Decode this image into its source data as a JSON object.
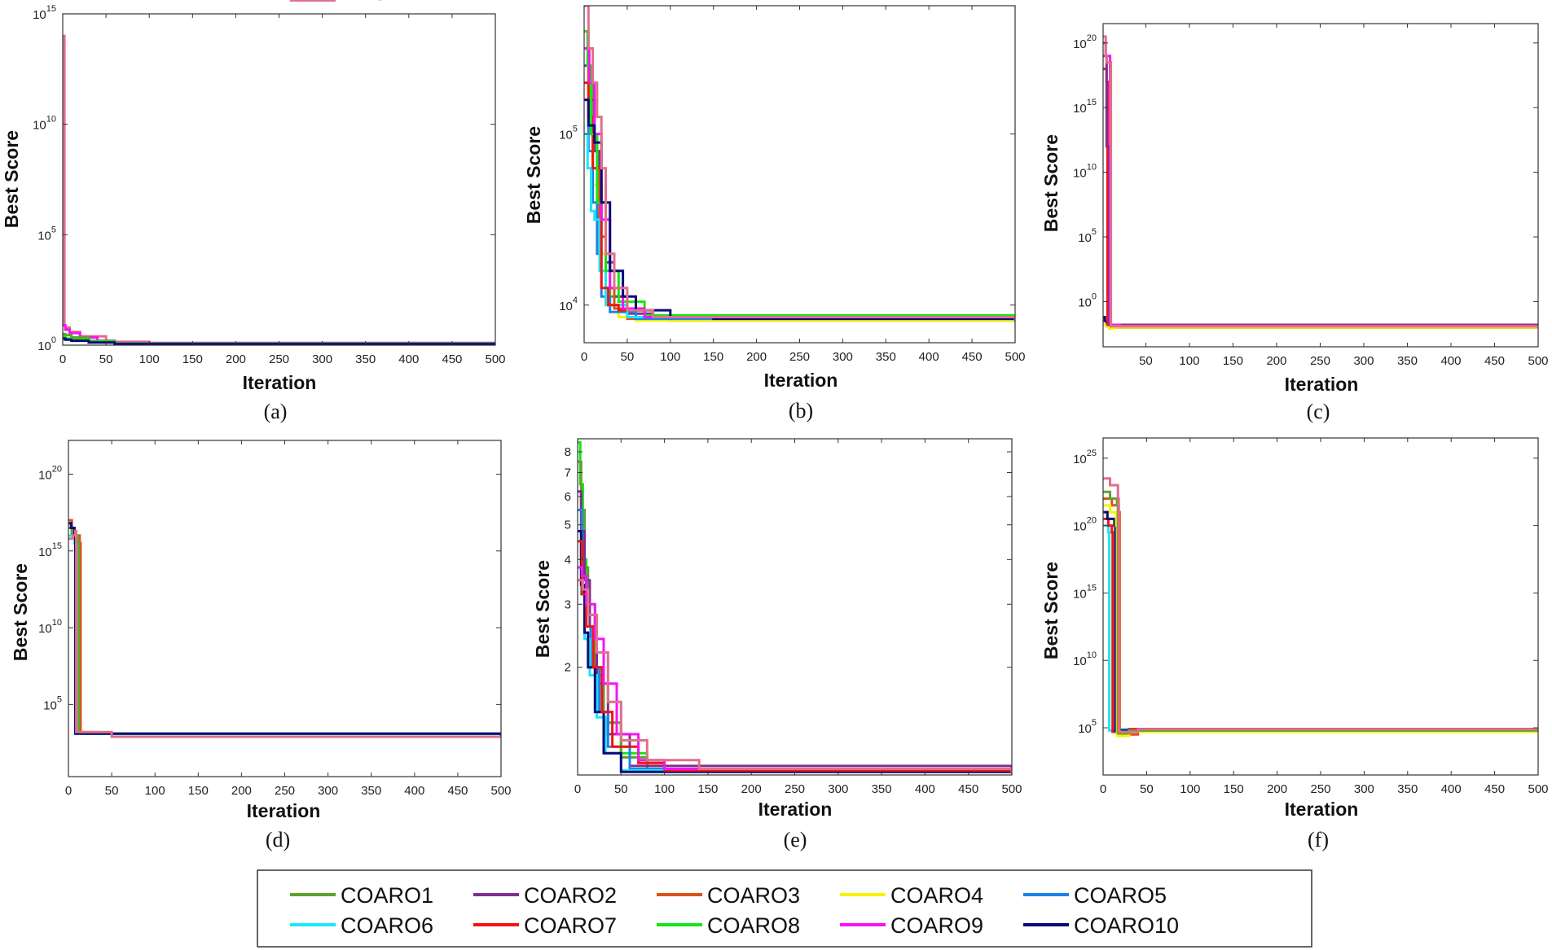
{
  "figure": {
    "legend": [
      {
        "name": "COARO1",
        "color": "#5fa22e"
      },
      {
        "name": "COARO2",
        "color": "#7e2f8e"
      },
      {
        "name": "COARO3",
        "color": "#d95319"
      },
      {
        "name": "COARO4",
        "color": "#f5f500"
      },
      {
        "name": "COARO5",
        "color": "#1c82e8"
      },
      {
        "name": "COARO6",
        "color": "#19e8f5"
      },
      {
        "name": "COARO7",
        "color": "#f01414"
      },
      {
        "name": "COARO8",
        "color": "#14e514"
      },
      {
        "name": "COARO9",
        "color": "#f514f5"
      },
      {
        "name": "COARO10",
        "color": "#0a0a78"
      },
      {
        "name": "ARO",
        "color": "#e0708a"
      }
    ]
  },
  "chart_data": [
    {
      "type": "line",
      "panel_label": "(a)",
      "xlabel": "Iteration",
      "ylabel": "Best Score",
      "yscale": "log",
      "xlim": [
        0,
        500
      ],
      "ylim_log10": [
        0,
        15
      ],
      "xticks": [
        0,
        50,
        100,
        150,
        200,
        250,
        300,
        350,
        400,
        450,
        500
      ],
      "yticks_exp": [
        0,
        5,
        10,
        15
      ],
      "series": [
        {
          "name": "ARO",
          "x": [
            0,
            1,
            2,
            3,
            8,
            20,
            50,
            100,
            500
          ],
          "log10_y": [
            14,
            14,
            0.9,
            0.8,
            0.6,
            0.4,
            0.15,
            0.05,
            0.02
          ]
        },
        {
          "name": "COARO9",
          "x": [
            0,
            3,
            8,
            20,
            40,
            60,
            500
          ],
          "log10_y": [
            0.9,
            0.7,
            0.55,
            0.35,
            0.2,
            0.1,
            0.02
          ]
        },
        {
          "name": "COARO1",
          "x": [
            0,
            3,
            10,
            30,
            60,
            500
          ],
          "log10_y": [
            0.5,
            0.45,
            0.35,
            0.2,
            0.08,
            0.02
          ]
        },
        {
          "name": "COARO8",
          "x": [
            0,
            3,
            10,
            30,
            60,
            500
          ],
          "log10_y": [
            0.4,
            0.3,
            0.25,
            0.15,
            0.06,
            0.02
          ]
        },
        {
          "name": "COARO10",
          "x": [
            0,
            3,
            10,
            30,
            60,
            500
          ],
          "log10_y": [
            0.3,
            0.25,
            0.2,
            0.12,
            0.05,
            0.02
          ]
        }
      ]
    },
    {
      "type": "line",
      "panel_label": "(b)",
      "xlabel": "Iteration",
      "ylabel": "Best Score",
      "yscale": "log",
      "xlim": [
        0,
        500
      ],
      "ylim_log10": [
        3.78,
        5.75
      ],
      "xticks": [
        0,
        50,
        100,
        150,
        200,
        250,
        300,
        350,
        400,
        450,
        500
      ],
      "yticks_exp": [
        4,
        5
      ],
      "series": [
        {
          "name": "COARO1",
          "x": [
            0,
            5,
            10,
            15,
            20,
            30,
            50,
            80,
            120,
            500
          ],
          "log10_y": [
            5.6,
            5.3,
            5.0,
            4.7,
            4.3,
            4.05,
            3.97,
            3.93,
            3.92,
            3.91
          ]
        },
        {
          "name": "COARO2",
          "x": [
            0,
            6,
            12,
            18,
            25,
            35,
            50,
            80,
            500
          ],
          "log10_y": [
            5.4,
            5.2,
            4.9,
            4.6,
            4.25,
            4.05,
            3.95,
            3.92,
            3.91
          ]
        },
        {
          "name": "COARO3",
          "x": [
            0,
            5,
            10,
            18,
            25,
            35,
            50,
            100,
            500
          ],
          "log10_y": [
            5.5,
            5.1,
            4.8,
            4.4,
            4.1,
            3.98,
            3.92,
            3.91,
            3.9
          ]
        },
        {
          "name": "COARO4",
          "x": [
            0,
            5,
            10,
            15,
            25,
            40,
            60,
            500
          ],
          "log10_y": [
            5.3,
            5.0,
            4.7,
            4.3,
            4.0,
            3.93,
            3.91,
            3.9
          ]
        },
        {
          "name": "COARO5",
          "x": [
            0,
            5,
            10,
            15,
            20,
            30,
            60,
            500
          ],
          "log10_y": [
            5.2,
            4.9,
            4.6,
            4.3,
            4.05,
            3.96,
            3.92,
            3.9
          ]
        },
        {
          "name": "COARO6",
          "x": [
            0,
            4,
            8,
            12,
            18,
            25,
            50,
            500
          ],
          "log10_y": [
            5.0,
            4.8,
            4.55,
            4.5,
            4.2,
            4.0,
            3.93,
            3.9
          ]
        },
        {
          "name": "COARO7",
          "x": [
            0,
            5,
            10,
            20,
            28,
            40,
            70,
            500
          ],
          "log10_y": [
            5.3,
            5.1,
            4.8,
            4.1,
            4.0,
            3.97,
            3.93,
            3.91
          ]
        },
        {
          "name": "COARO8",
          "x": [
            0,
            4,
            8,
            15,
            25,
            40,
            70,
            500
          ],
          "log10_y": [
            5.6,
            5.4,
            5.0,
            4.6,
            4.2,
            4.02,
            3.94,
            3.91
          ]
        },
        {
          "name": "COARO9",
          "x": [
            0,
            6,
            12,
            20,
            30,
            45,
            70,
            500
          ],
          "log10_y": [
            5.5,
            5.3,
            5.0,
            4.5,
            4.1,
            3.98,
            3.93,
            3.91
          ]
        },
        {
          "name": "COARO10",
          "x": [
            0,
            5,
            12,
            20,
            30,
            45,
            60,
            100,
            150,
            500
          ],
          "log10_y": [
            5.2,
            5.05,
            4.95,
            4.6,
            4.2,
            4.05,
            3.97,
            3.93,
            3.92,
            3.91
          ]
        },
        {
          "name": "ARO",
          "x": [
            0,
            5,
            10,
            15,
            20,
            25,
            35,
            50,
            80,
            500
          ],
          "log10_y": [
            5.75,
            5.5,
            5.3,
            5.1,
            4.8,
            4.3,
            4.1,
            3.97,
            3.93,
            3.91
          ]
        }
      ]
    },
    {
      "type": "line",
      "panel_label": "(c)",
      "xlabel": "Iteration",
      "ylabel": "Best Score",
      "yscale": "log",
      "xlim": [
        1,
        500
      ],
      "ylim_log10": [
        -3.5,
        21.5
      ],
      "xticks": [
        50,
        100,
        150,
        200,
        250,
        300,
        350,
        400,
        450,
        500
      ],
      "yticks_exp": [
        0,
        5,
        10,
        15,
        20
      ],
      "series": [
        {
          "name": "COARO10",
          "x": [
            1,
            3,
            5,
            10,
            500
          ],
          "log10_y": [
            -1.2,
            -1.5,
            -1.9,
            -2.0,
            -2.0
          ]
        },
        {
          "name": "COARO4",
          "x": [
            1,
            5,
            8,
            12,
            500
          ],
          "log10_y": [
            -1.8,
            -1.9,
            -2.1,
            -2.0,
            -2.0
          ]
        },
        {
          "name": "COARO7",
          "x": [
            1,
            4,
            5,
            6,
            10,
            500
          ],
          "log10_y": [
            18,
            18,
            17,
            -1.8,
            -1.9,
            -2.0
          ]
        },
        {
          "name": "COARO2",
          "x": [
            1,
            4,
            5,
            8,
            500
          ],
          "log10_y": [
            19,
            19,
            12,
            -1.8,
            -2.0
          ]
        },
        {
          "name": "COARO9",
          "x": [
            1,
            3,
            4,
            8,
            9,
            10,
            20,
            500
          ],
          "log10_y": [
            20,
            20,
            19,
            19,
            -1.6,
            -1.8,
            -1.9,
            -2.0
          ]
        },
        {
          "name": "ARO",
          "x": [
            1,
            4,
            5,
            10,
            500
          ],
          "log10_y": [
            20.5,
            19,
            18.5,
            -1.9,
            -2.0
          ]
        }
      ]
    },
    {
      "type": "line",
      "panel_label": "(d)",
      "xlabel": "Iteration",
      "ylabel": "Best Score",
      "yscale": "log",
      "xlim": [
        0,
        500
      ],
      "ylim_log10": [
        0.3,
        22.2
      ],
      "xticks": [
        0,
        50,
        100,
        150,
        200,
        250,
        300,
        350,
        400,
        450,
        500
      ],
      "yticks_exp": [
        5,
        10,
        15,
        20
      ],
      "series": [
        {
          "name": "COARO3",
          "x": [
            0,
            4,
            13,
            14,
            16,
            500
          ],
          "log10_y": [
            17,
            16,
            15.5,
            3.2,
            3.1,
            2.8
          ]
        },
        {
          "name": "COARO1",
          "x": [
            0,
            4,
            11,
            12,
            500
          ],
          "log10_y": [
            16.5,
            16,
            15.5,
            3.1,
            2.8
          ]
        },
        {
          "name": "COARO6",
          "x": [
            0,
            3,
            7,
            8,
            500
          ],
          "log10_y": [
            16,
            16,
            15.5,
            3.1,
            2.8
          ]
        },
        {
          "name": "COARO10",
          "x": [
            0,
            3,
            7,
            8,
            500
          ],
          "log10_y": [
            16.8,
            16.5,
            16,
            3.1,
            2.8
          ]
        },
        {
          "name": "ARO",
          "x": [
            0,
            5,
            8,
            9,
            50,
            500
          ],
          "log10_y": [
            15.8,
            16,
            16.3,
            3.2,
            2.9,
            2.8
          ]
        }
      ]
    },
    {
      "type": "line",
      "panel_label": "(e)",
      "xlabel": "Iteration",
      "ylabel": "Best Score",
      "yscale": "log",
      "xlim": [
        0,
        500
      ],
      "ylim": [
        1,
        8.7
      ],
      "xticks": [
        0,
        50,
        100,
        150,
        200,
        250,
        300,
        350,
        400,
        450,
        500
      ],
      "yticks": [
        2,
        3,
        4,
        5,
        6,
        7,
        8
      ],
      "series": [
        {
          "name": "COARO8",
          "x": [
            0,
            3,
            6,
            10,
            20,
            30,
            50,
            80,
            500
          ],
          "y": [
            8.5,
            6.5,
            4.0,
            3.0,
            2.0,
            1.4,
            1.15,
            1.03,
            1.0
          ]
        },
        {
          "name": "COARO1",
          "x": [
            0,
            4,
            8,
            12,
            20,
            30,
            50,
            80,
            500
          ],
          "y": [
            7.5,
            5.5,
            3.8,
            2.8,
            1.9,
            1.4,
            1.12,
            1.03,
            1.0
          ]
        },
        {
          "name": "COARO2",
          "x": [
            0,
            4,
            8,
            14,
            22,
            35,
            60,
            500
          ],
          "y": [
            6.2,
            4.8,
            3.5,
            2.6,
            1.8,
            1.3,
            1.06,
            1.0
          ]
        },
        {
          "name": "COARO5",
          "x": [
            0,
            5,
            10,
            15,
            25,
            35,
            60,
            500
          ],
          "y": [
            5.5,
            3.5,
            2.6,
            2.0,
            1.5,
            1.2,
            1.04,
            1.0
          ]
        },
        {
          "name": "COARO6",
          "x": [
            0,
            4,
            8,
            14,
            22,
            32,
            50,
            500
          ],
          "y": [
            4.8,
            3.2,
            2.4,
            1.9,
            1.45,
            1.15,
            1.03,
            1.0
          ]
        },
        {
          "name": "COARO10",
          "x": [
            0,
            4,
            8,
            12,
            20,
            30,
            50,
            500
          ],
          "y": [
            4.8,
            3.4,
            2.5,
            2.0,
            1.5,
            1.15,
            1.02,
            1.0
          ]
        },
        {
          "name": "COARO7",
          "x": [
            0,
            5,
            10,
            18,
            28,
            40,
            70,
            100,
            500
          ],
          "y": [
            4.5,
            3.2,
            2.6,
            2.0,
            1.5,
            1.2,
            1.08,
            1.03,
            1.0
          ]
        },
        {
          "name": "COARO9",
          "x": [
            0,
            5,
            10,
            20,
            30,
            45,
            70,
            100,
            500
          ],
          "y": [
            3.8,
            3.6,
            3.0,
            2.4,
            1.8,
            1.3,
            1.1,
            1.04,
            1.0
          ]
        },
        {
          "name": "ARO",
          "x": [
            0,
            6,
            12,
            22,
            35,
            50,
            80,
            140,
            500
          ],
          "y": [
            3.5,
            3.3,
            2.8,
            2.2,
            1.6,
            1.25,
            1.1,
            1.04,
            1.0
          ]
        }
      ]
    },
    {
      "type": "line",
      "panel_label": "(f)",
      "xlabel": "Iteration",
      "ylabel": "Best Score",
      "yscale": "log",
      "xlim": [
        0,
        500
      ],
      "ylim_log10": [
        1.5,
        26.5
      ],
      "xticks": [
        0,
        50,
        100,
        150,
        200,
        250,
        300,
        350,
        400,
        450,
        500
      ],
      "yticks_exp": [
        5,
        10,
        15,
        20,
        25
      ],
      "series": [
        {
          "name": "COARO6",
          "x": [
            0,
            6,
            7,
            20,
            500
          ],
          "log10_y": [
            20,
            19.5,
            4.8,
            4.9,
            5.0
          ]
        },
        {
          "name": "COARO7",
          "x": [
            0,
            6,
            10,
            11,
            30,
            500
          ],
          "log10_y": [
            20.5,
            20,
            19.5,
            4.7,
            4.9,
            5.0
          ]
        },
        {
          "name": "COARO10",
          "x": [
            0,
            5,
            13,
            14,
            40,
            500
          ],
          "log10_y": [
            21,
            20.5,
            20,
            4.8,
            4.9,
            5.0
          ]
        },
        {
          "name": "COARO3",
          "x": [
            0,
            10,
            18,
            19,
            40,
            500
          ],
          "log10_y": [
            22,
            21.5,
            21,
            4.5,
            4.8,
            5.0
          ]
        },
        {
          "name": "COARO4",
          "x": [
            0,
            8,
            15,
            16,
            30,
            500
          ],
          "log10_y": [
            21.5,
            21,
            20,
            4.4,
            4.7,
            5.0
          ]
        },
        {
          "name": "COARO1",
          "x": [
            0,
            8,
            16,
            17,
            30,
            500
          ],
          "log10_y": [
            22.5,
            22,
            21.5,
            4.6,
            4.8,
            5.0
          ]
        },
        {
          "name": "ARO",
          "x": [
            0,
            8,
            17,
            18,
            40,
            500
          ],
          "log10_y": [
            23.5,
            23,
            22,
            4.7,
            4.9,
            5.0
          ]
        }
      ]
    }
  ]
}
